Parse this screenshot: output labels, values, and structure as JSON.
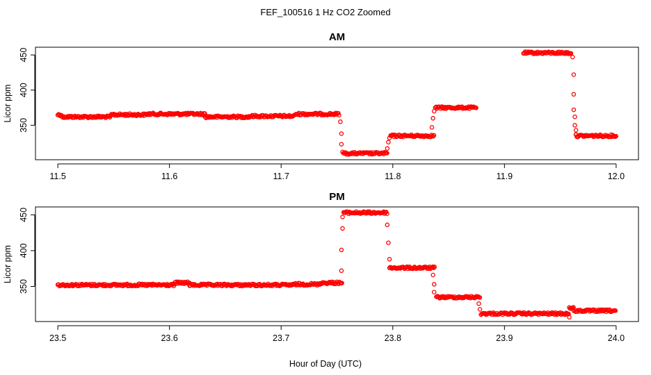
{
  "colors": {
    "points": "#ff0000",
    "axes": "#000000",
    "background": "#ffffff"
  },
  "super_title": "FEF_100516 1 Hz CO2 Zoomed",
  "common_xlabel": "Hour of Day (UTC)",
  "chart_data": [
    {
      "type": "scatter",
      "title": "AM",
      "xlabel": "",
      "ylabel": "Licor ppm",
      "xlim": [
        11.48,
        12.02
      ],
      "ylim": [
        301,
        461
      ],
      "xticks": [
        11.5,
        11.6,
        11.7,
        11.8,
        11.9,
        12.0
      ],
      "xtick_labels": [
        "11.5",
        "11.6",
        "11.7",
        "11.8",
        "11.9",
        "12.0"
      ],
      "yticks": [
        350,
        400,
        450
      ],
      "ytick_labels": [
        "350",
        "400",
        "450"
      ],
      "segments": [
        {
          "x": [
            11.5,
            11.503
          ],
          "y": 365
        },
        {
          "x": [
            11.504,
            11.548
          ],
          "y": 362
        },
        {
          "x": [
            11.548,
            11.58
          ],
          "y": 365
        },
        {
          "x": [
            11.58,
            11.61
          ],
          "y": 366
        },
        {
          "x": [
            11.61,
            11.632
          ],
          "y": 366
        },
        {
          "x": [
            11.632,
            11.672
          ],
          "y": 362
        },
        {
          "x": [
            11.672,
            11.712
          ],
          "y": 363
        },
        {
          "x": [
            11.713,
            11.752
          ],
          "y": 366
        },
        {
          "x": [
            11.756,
            11.795
          ],
          "y": 310
        },
        {
          "x": [
            11.798,
            11.837
          ],
          "y": 335
        },
        {
          "x": [
            11.838,
            11.875
          ],
          "y": 375
        },
        {
          "x": [
            11.917,
            11.96
          ],
          "y": 453
        },
        {
          "x": [
            11.964,
            12.0
          ],
          "y": 335
        }
      ],
      "transition_points": [
        {
          "x": 11.753,
          "y": 355
        },
        {
          "x": 11.754,
          "y": 338
        },
        {
          "x": 11.754,
          "y": 323
        },
        {
          "x": 11.755,
          "y": 312
        },
        {
          "x": 11.795,
          "y": 317
        },
        {
          "x": 11.796,
          "y": 326
        },
        {
          "x": 11.797,
          "y": 332
        },
        {
          "x": 11.835,
          "y": 347
        },
        {
          "x": 11.836,
          "y": 360
        },
        {
          "x": 11.837,
          "y": 370
        },
        {
          "x": 11.961,
          "y": 447
        },
        {
          "x": 11.962,
          "y": 422
        },
        {
          "x": 11.962,
          "y": 394
        },
        {
          "x": 11.962,
          "y": 372
        },
        {
          "x": 11.963,
          "y": 362
        },
        {
          "x": 11.963,
          "y": 350
        },
        {
          "x": 11.964,
          "y": 343
        },
        {
          "x": 11.964,
          "y": 337
        }
      ]
    },
    {
      "type": "scatter",
      "title": "PM",
      "xlabel": "Hour of Day (UTC)",
      "ylabel": "Licor ppm",
      "xlim": [
        23.48,
        24.02
      ],
      "ylim": [
        301,
        461
      ],
      "xticks": [
        23.5,
        23.6,
        23.7,
        23.8,
        23.9,
        24.0
      ],
      "xtick_labels": [
        "23.5",
        "23.6",
        "23.7",
        "23.8",
        "23.9",
        "24.0"
      ],
      "yticks": [
        350,
        400,
        450
      ],
      "ytick_labels": [
        "350",
        "400",
        "450"
      ],
      "segments": [
        {
          "x": [
            23.5,
            23.605
          ],
          "y": 352
        },
        {
          "x": [
            23.605,
            23.618
          ],
          "y": 355
        },
        {
          "x": [
            23.618,
            23.712
          ],
          "y": 352
        },
        {
          "x": [
            23.712,
            23.735
          ],
          "y": 353
        },
        {
          "x": [
            23.735,
            23.755
          ],
          "y": 355
        },
        {
          "x": [
            23.756,
            23.795
          ],
          "y": 453
        },
        {
          "x": [
            23.797,
            23.838
          ],
          "y": 376
        },
        {
          "x": [
            23.839,
            23.878
          ],
          "y": 335
        },
        {
          "x": [
            23.879,
            23.958
          ],
          "y": 312
        },
        {
          "x": [
            23.958,
            23.962
          ],
          "y": 320
        },
        {
          "x": [
            23.962,
            24.0
          ],
          "y": 316
        }
      ],
      "transition_points": [
        {
          "x": 23.754,
          "y": 372
        },
        {
          "x": 23.754,
          "y": 401
        },
        {
          "x": 23.755,
          "y": 431
        },
        {
          "x": 23.755,
          "y": 447
        },
        {
          "x": 23.795,
          "y": 436
        },
        {
          "x": 23.796,
          "y": 411
        },
        {
          "x": 23.797,
          "y": 388
        },
        {
          "x": 23.836,
          "y": 366
        },
        {
          "x": 23.837,
          "y": 353
        },
        {
          "x": 23.837,
          "y": 342
        },
        {
          "x": 23.877,
          "y": 326
        },
        {
          "x": 23.878,
          "y": 318
        },
        {
          "x": 23.958,
          "y": 307
        }
      ]
    }
  ]
}
